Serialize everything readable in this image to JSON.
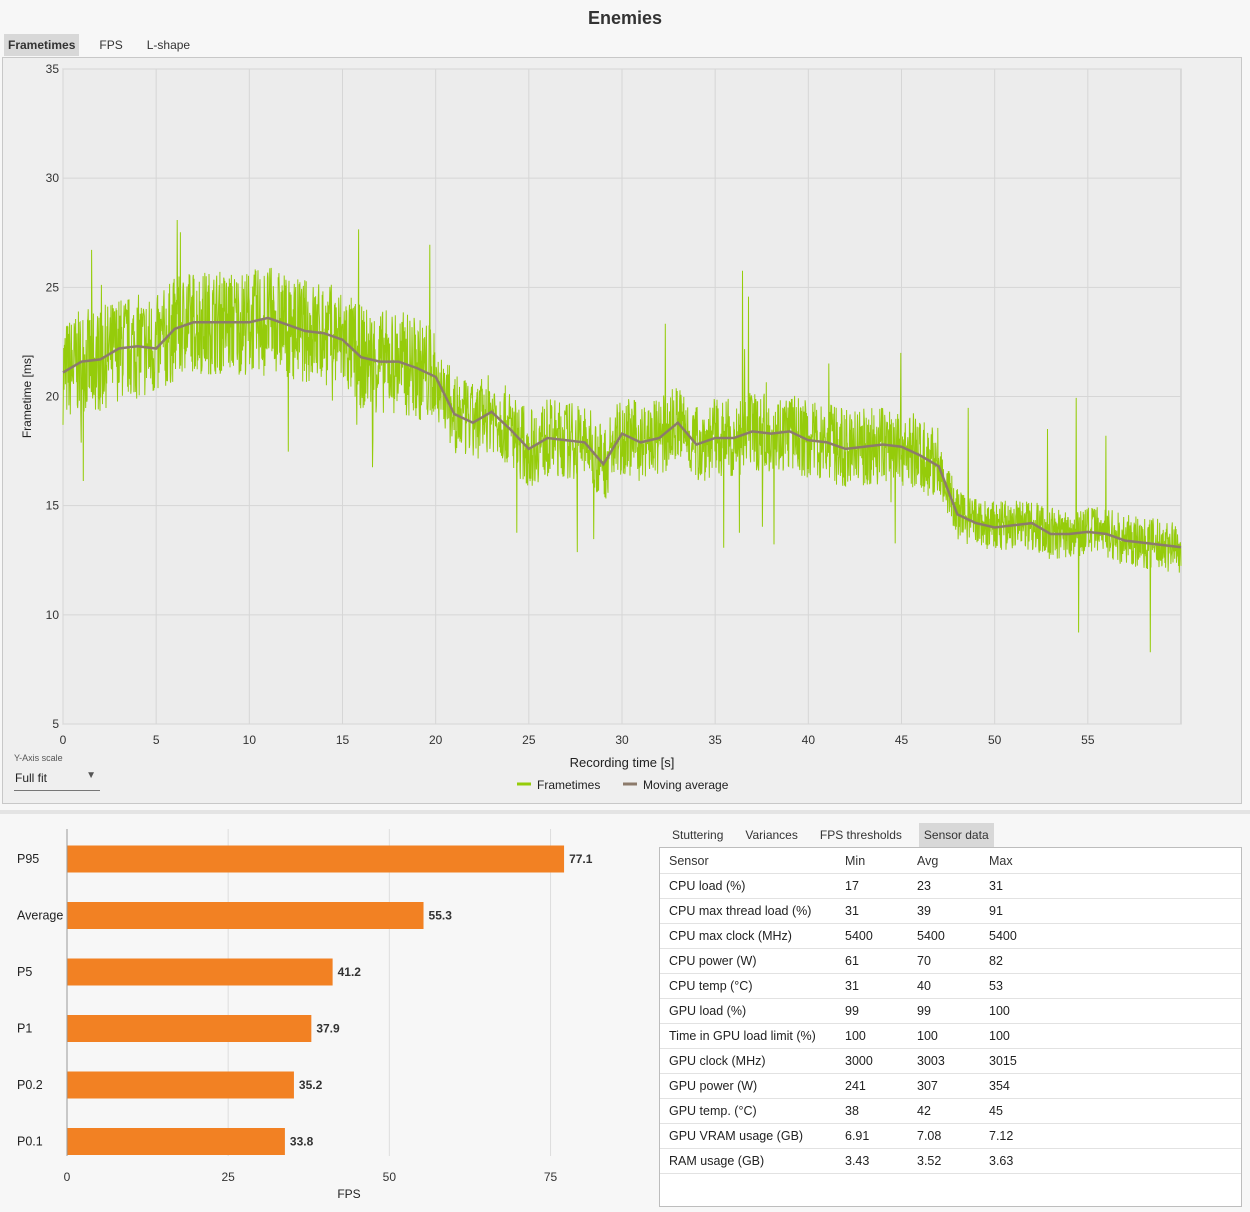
{
  "title": "Enemies",
  "tabs": [
    {
      "label": "Frametimes",
      "active": true
    },
    {
      "label": "FPS",
      "active": false
    },
    {
      "label": "L-shape",
      "active": false
    }
  ],
  "frametime_chart": {
    "ylabel": "Frametime [ms]",
    "xlabel": "Recording time [s]",
    "y_ticks": [
      "35",
      "30",
      "25",
      "20",
      "15",
      "10",
      "5"
    ],
    "x_ticks": [
      "0",
      "5",
      "10",
      "15",
      "20",
      "25",
      "30",
      "35",
      "40",
      "45",
      "50",
      "55"
    ],
    "legend": [
      {
        "name": "Frametimes",
        "color": "#95cc0a"
      },
      {
        "name": "Moving average",
        "color": "#8c7b6b"
      }
    ]
  },
  "y_axis_scale": {
    "label": "Y-Axis scale",
    "value": "Full fit"
  },
  "chart_data": [
    {
      "type": "line",
      "xlabel": "Recording time [s]",
      "ylabel": "Frametime [ms]",
      "xlim": [
        0,
        60
      ],
      "ylim": [
        5,
        35
      ],
      "grid": true,
      "legend_position": "bottom",
      "series": [
        {
          "name": "Frametimes",
          "color": "#95cc0a"
        },
        {
          "name": "Moving average",
          "color": "#8c7b6b",
          "x": [
            0,
            1,
            2,
            3,
            4,
            5,
            6,
            7,
            8,
            9,
            10,
            11,
            12,
            13,
            14,
            15,
            16,
            17,
            18,
            19,
            20,
            21,
            22,
            23,
            24,
            25,
            26,
            27,
            28,
            29,
            30,
            31,
            32,
            33,
            34,
            35,
            36,
            37,
            38,
            39,
            40,
            41,
            42,
            43,
            44,
            45,
            46,
            47,
            48,
            49,
            50,
            51,
            52,
            53,
            54,
            55,
            56,
            57,
            58,
            59,
            60
          ],
          "y": [
            21.1,
            21.6,
            21.7,
            22.2,
            22.3,
            22.2,
            23.1,
            23.4,
            23.4,
            23.4,
            23.4,
            23.6,
            23.3,
            23.0,
            22.9,
            22.6,
            21.8,
            21.6,
            21.6,
            21.3,
            20.9,
            19.2,
            18.8,
            19.3,
            18.5,
            17.6,
            18.1,
            18.0,
            17.9,
            16.9,
            18.3,
            17.9,
            18.1,
            18.8,
            17.8,
            18.1,
            18.1,
            18.4,
            18.3,
            18.4,
            18.0,
            17.9,
            17.6,
            17.7,
            17.8,
            17.7,
            17.3,
            16.8,
            14.6,
            14.2,
            14.0,
            14.1,
            14.2,
            13.7,
            13.7,
            13.8,
            13.7,
            13.4,
            13.3,
            13.2,
            13.1
          ]
        }
      ]
    },
    {
      "type": "bar",
      "orientation": "horizontal",
      "categories": [
        "P95",
        "Average",
        "P5",
        "P1",
        "P0.2",
        "P0.1"
      ],
      "values": [
        77.1,
        55.3,
        41.2,
        37.9,
        35.2,
        33.8
      ],
      "value_labels": [
        "77.1",
        "55.3",
        "41.2",
        "37.9",
        "35.2",
        "33.8"
      ],
      "color": "#f28123",
      "xlabel": "FPS",
      "xlim": [
        0,
        85
      ],
      "x_ticks": [
        "0",
        "25",
        "50",
        "75"
      ]
    }
  ],
  "sub_tabs": [
    {
      "label": "Stuttering",
      "active": false
    },
    {
      "label": "Variances",
      "active": false
    },
    {
      "label": "FPS thresholds",
      "active": false
    },
    {
      "label": "Sensor data",
      "active": true
    }
  ],
  "sensor_table": {
    "headers": [
      "Sensor",
      "Min",
      "Avg",
      "Max"
    ],
    "rows": [
      [
        "CPU load (%)",
        "17",
        "23",
        "31"
      ],
      [
        "CPU max thread load (%)",
        "31",
        "39",
        "91"
      ],
      [
        "CPU max clock (MHz)",
        "5400",
        "5400",
        "5400"
      ],
      [
        "CPU power (W)",
        "61",
        "70",
        "82"
      ],
      [
        "CPU temp (°C)",
        "31",
        "40",
        "53"
      ],
      [
        "GPU load (%)",
        "99",
        "99",
        "100"
      ],
      [
        "Time in GPU load limit (%)",
        "100",
        "100",
        "100"
      ],
      [
        "GPU clock (MHz)",
        "3000",
        "3003",
        "3015"
      ],
      [
        "GPU power (W)",
        "241",
        "307",
        "354"
      ],
      [
        "GPU temp. (°C)",
        "38",
        "42",
        "45"
      ],
      [
        "GPU VRAM usage (GB)",
        "6.91",
        "7.08",
        "7.12"
      ],
      [
        "RAM usage (GB)",
        "3.43",
        "3.52",
        "3.63"
      ]
    ]
  }
}
